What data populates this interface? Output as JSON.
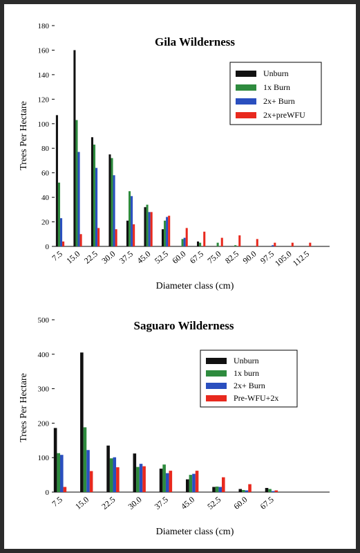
{
  "chart_data": [
    {
      "type": "bar",
      "title": "Gila Wilderness",
      "xlabel": "Diameter class (cm)",
      "ylabel": "Trees Per Hectare",
      "ylim": [
        0,
        180
      ],
      "yticks": [
        0,
        20,
        40,
        60,
        80,
        100,
        120,
        140,
        160,
        180
      ],
      "grid": false,
      "legend_position": "top-right",
      "categories": [
        "7.5",
        "15.0",
        "22.5",
        "30.0",
        "37.5",
        "45.0",
        "52.5",
        "60.0",
        "67.5",
        "75.0",
        "82.5",
        "90.0",
        "97.5",
        "105.0",
        "112.5"
      ],
      "series": [
        {
          "name": "Unburn",
          "color": "#111111",
          "values": [
            107,
            160,
            89,
            75,
            21,
            32,
            14,
            0,
            4,
            0,
            0,
            0,
            0,
            0,
            0
          ]
        },
        {
          "name": "1x Burn",
          "color": "#2e8b3e",
          "values": [
            52,
            103,
            83,
            72,
            45,
            34,
            21,
            6,
            3,
            3,
            1,
            0,
            0,
            0,
            0
          ]
        },
        {
          "name": "2x+ Burn",
          "color": "#2a4fbf",
          "values": [
            23,
            77,
            64,
            58,
            41,
            28,
            24,
            7,
            0,
            0,
            0,
            0,
            1,
            0,
            0
          ]
        },
        {
          "name": "2x+preWFU",
          "color": "#e8291e",
          "values": [
            4,
            10,
            15,
            14,
            18,
            28,
            25,
            15,
            12,
            7,
            9,
            6,
            3,
            3,
            3
          ]
        }
      ]
    },
    {
      "type": "bar",
      "title": "Saguaro Wilderness",
      "xlabel": "Diameter class (cm)",
      "ylabel": "Trees Per Hectare",
      "ylim": [
        0,
        500
      ],
      "yticks": [
        0,
        100,
        200,
        300,
        400,
        500
      ],
      "grid": false,
      "legend_position": "top-right",
      "categories": [
        "7.5",
        "15.0",
        "22.5",
        "30.0",
        "37.5",
        "45.0",
        "52.5",
        "60.0",
        "67.5"
      ],
      "series": [
        {
          "name": "Unburn",
          "color": "#111111",
          "values": [
            186,
            405,
            135,
            112,
            68,
            37,
            15,
            9,
            12
          ]
        },
        {
          "name": "1x burn",
          "color": "#2e8b3e",
          "values": [
            113,
            188,
            98,
            73,
            80,
            50,
            16,
            6,
            9
          ]
        },
        {
          "name": "2x+ Burn",
          "color": "#2a4fbf",
          "values": [
            108,
            122,
            101,
            82,
            55,
            53,
            15,
            5,
            3
          ]
        },
        {
          "name": "Pre-WFU+2x",
          "color": "#e8291e",
          "values": [
            15,
            61,
            72,
            75,
            62,
            62,
            43,
            23,
            5
          ]
        }
      ]
    }
  ]
}
